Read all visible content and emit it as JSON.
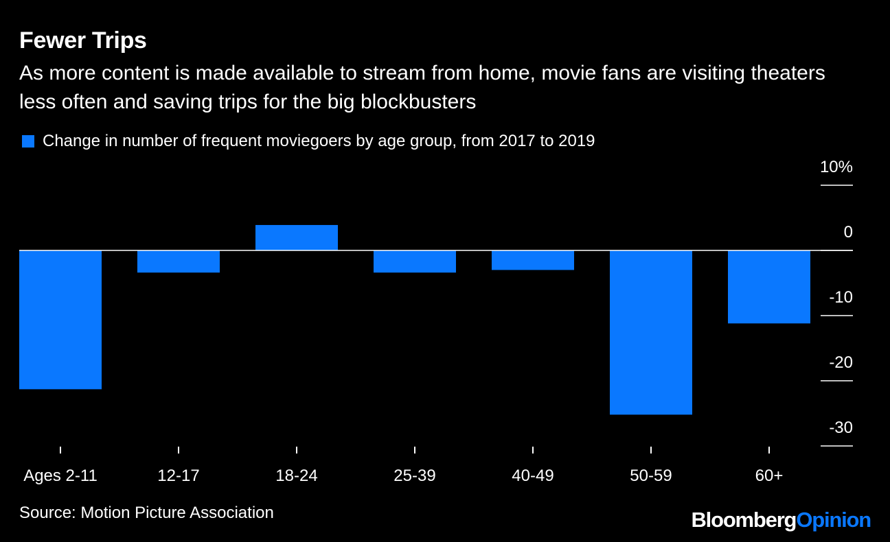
{
  "title": "Fewer Trips",
  "subtitle": "As more content is made available to stream from home, movie fans are visiting theaters less often and saving trips for the big blockbusters",
  "source": "Source: Motion Picture Association",
  "brand": {
    "first": "Bloomberg",
    "second": "Opinion"
  },
  "colors": {
    "bar": "#0a78ff",
    "background": "#000000",
    "text": "#ffffff"
  },
  "chart_data": {
    "type": "bar",
    "legend": "Change in number of frequent moviegoers by age group, from 2017 to 2019",
    "legend_position": "top-left",
    "categories": [
      "Ages 2-11",
      "12-17",
      "18-24",
      "25-39",
      "40-49",
      "50-59",
      "60+"
    ],
    "values": [
      -21.3,
      -3.4,
      3.9,
      -3.4,
      -3.0,
      -25.2,
      -11.2
    ],
    "ylim": [
      -30,
      10
    ],
    "yticks": [
      10,
      0,
      -10,
      -20,
      -30
    ],
    "ytick_labels": [
      "10%",
      "0",
      "-10",
      "-20",
      "-30"
    ],
    "grid": false,
    "y_axis_side": "right"
  }
}
